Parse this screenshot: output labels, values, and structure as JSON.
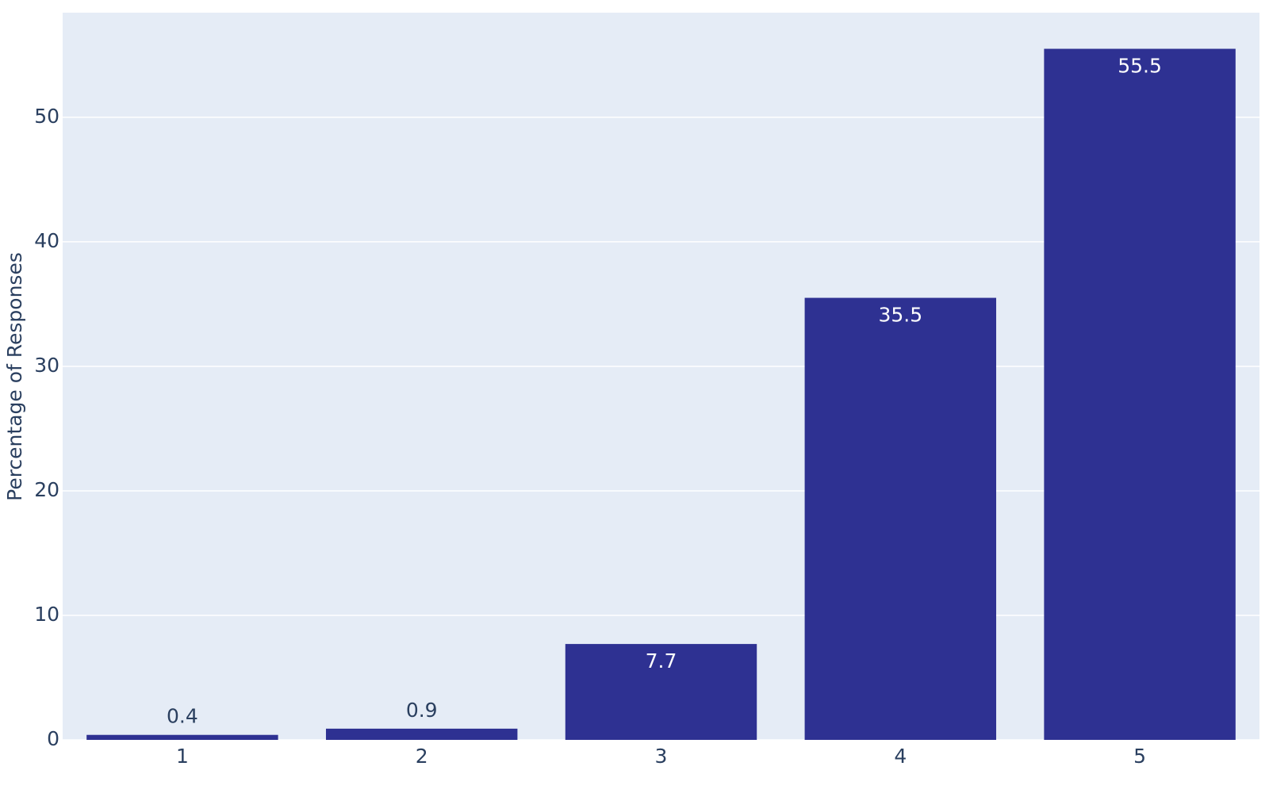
{
  "chart_data": {
    "type": "bar",
    "y_axis_label": "Percentage of Responses",
    "categories": [
      "1",
      "2",
      "3",
      "4",
      "5"
    ],
    "values": [
      0.4,
      0.9,
      7.7,
      35.5,
      55.5
    ],
    "color": "#2e3192",
    "ylim": [
      0,
      58.4
    ],
    "yticks": [
      0,
      10,
      20,
      30,
      40,
      50
    ],
    "grid": true
  }
}
